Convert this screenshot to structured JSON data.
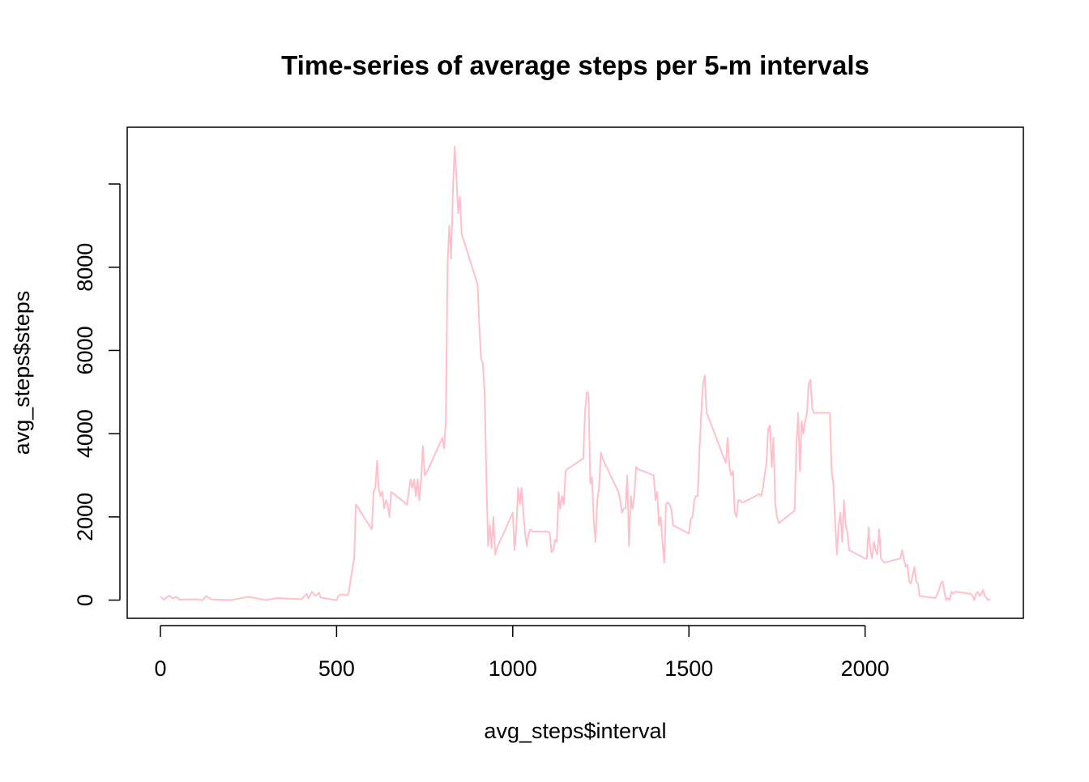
{
  "chart_data": {
    "type": "line",
    "title": "Time-series of average steps per 5-m intervals",
    "x_label": "avg_steps$interval",
    "y_label": "avg_steps$steps",
    "color": "#ffc0cb",
    "x": [
      0,
      10,
      25,
      35,
      45,
      55,
      100,
      120,
      130,
      145,
      200,
      250,
      300,
      330,
      400,
      415,
      420,
      430,
      440,
      450,
      455,
      500,
      505,
      515,
      530,
      535,
      540,
      545,
      550,
      555,
      600,
      605,
      610,
      615,
      620,
      625,
      630,
      635,
      640,
      645,
      650,
      655,
      700,
      705,
      710,
      715,
      720,
      725,
      730,
      735,
      740,
      745,
      750,
      755,
      800,
      805,
      810,
      815,
      820,
      825,
      830,
      835,
      840,
      845,
      850,
      855,
      900,
      905,
      910,
      915,
      920,
      925,
      930,
      935,
      940,
      945,
      950,
      955,
      1000,
      1005,
      1010,
      1015,
      1020,
      1025,
      1030,
      1035,
      1040,
      1045,
      1050,
      1055,
      1100,
      1105,
      1110,
      1115,
      1120,
      1125,
      1130,
      1135,
      1140,
      1145,
      1150,
      1155,
      1200,
      1205,
      1210,
      1215,
      1220,
      1225,
      1230,
      1235,
      1240,
      1245,
      1250,
      1255,
      1300,
      1305,
      1310,
      1315,
      1320,
      1325,
      1330,
      1335,
      1340,
      1345,
      1350,
      1355,
      1400,
      1405,
      1410,
      1415,
      1420,
      1425,
      1430,
      1435,
      1440,
      1445,
      1450,
      1455,
      1500,
      1505,
      1510,
      1515,
      1520,
      1525,
      1530,
      1535,
      1540,
      1545,
      1550,
      1555,
      1600,
      1605,
      1610,
      1615,
      1620,
      1625,
      1630,
      1635,
      1640,
      1645,
      1650,
      1655,
      1700,
      1705,
      1710,
      1715,
      1720,
      1725,
      1730,
      1735,
      1740,
      1745,
      1750,
      1755,
      1800,
      1805,
      1810,
      1815,
      1820,
      1825,
      1830,
      1835,
      1840,
      1845,
      1850,
      1855,
      1900,
      1905,
      1910,
      1915,
      1920,
      1925,
      1930,
      1935,
      1940,
      1945,
      1950,
      1955,
      2000,
      2005,
      2010,
      2015,
      2020,
      2025,
      2030,
      2035,
      2040,
      2045,
      2050,
      2055,
      2100,
      2105,
      2110,
      2115,
      2120,
      2125,
      2130,
      2135,
      2140,
      2145,
      2150,
      2155,
      2200,
      2205,
      2210,
      2215,
      2220,
      2225,
      2230,
      2235,
      2240,
      2245,
      2250,
      2255,
      2300,
      2305,
      2310,
      2315,
      2320,
      2325,
      2330,
      2335,
      2340,
      2345,
      2350,
      2355
    ],
    "values": [
      90,
      10,
      110,
      40,
      80,
      10,
      20,
      0,
      100,
      15,
      0,
      80,
      0,
      50,
      20,
      150,
      40,
      200,
      100,
      180,
      60,
      0,
      100,
      140,
      110,
      200,
      500,
      750,
      1000,
      2300,
      1700,
      2600,
      2700,
      3350,
      2650,
      2500,
      2600,
      2200,
      2400,
      2300,
      2000,
      2600,
      2300,
      2600,
      2900,
      2700,
      2900,
      2500,
      2900,
      2400,
      2900,
      3700,
      3000,
      3050,
      3900,
      3650,
      4300,
      8100,
      9000,
      8200,
      9800,
      10900,
      10200,
      9300,
      9700,
      8800,
      7600,
      6600,
      5800,
      5700,
      5000,
      3000,
      1300,
      1800,
      1250,
      2000,
      1100,
      1250,
      2100,
      1200,
      1700,
      2700,
      2300,
      2700,
      2100,
      1600,
      1300,
      1600,
      1700,
      1650,
      1650,
      1600,
      1150,
      1200,
      1450,
      1400,
      2600,
      2200,
      2500,
      2300,
      3100,
      3150,
      3400,
      4500,
      5000,
      4950,
      2800,
      2950,
      1900,
      1400,
      2400,
      2700,
      3550,
      3400,
      2600,
      2400,
      2100,
      2200,
      2200,
      3000,
      1300,
      2500,
      2200,
      2500,
      3200,
      3150,
      3000,
      2400,
      2600,
      1800,
      2000,
      1400,
      900,
      2300,
      2350,
      2300,
      2200,
      1800,
      1600,
      1950,
      2000,
      2400,
      2500,
      2500,
      3600,
      4500,
      5200,
      5400,
      4500,
      4400,
      3400,
      3300,
      3900,
      3200,
      3000,
      3100,
      2100,
      2000,
      2400,
      2400,
      2350,
      2350,
      2550,
      2500,
      2700,
      3000,
      3300,
      4100,
      4200,
      3200,
      3900,
      2300,
      2000,
      1850,
      2150,
      3700,
      4500,
      3100,
      4300,
      4000,
      4300,
      4500,
      5200,
      5300,
      4600,
      4500,
      4500,
      3100,
      2800,
      1900,
      1100,
      1800,
      2100,
      1400,
      2400,
      1800,
      1600,
      1200,
      1000,
      1000,
      1750,
      1200,
      1000,
      1400,
      1200,
      1100,
      1700,
      1000,
      950,
      900,
      1000,
      1200,
      1000,
      800,
      850,
      450,
      400,
      600,
      800,
      450,
      400,
      100,
      50,
      150,
      250,
      400,
      450,
      200,
      0,
      50,
      0,
      200,
      150,
      200,
      150,
      100,
      0,
      150,
      200,
      100,
      150,
      250,
      100,
      50,
      0,
      30
    ],
    "xlim": [
      -94.2,
      2449.2
    ],
    "ylim": [
      -437,
      11364
    ],
    "xticks": [
      0,
      500,
      1000,
      1500,
      2000
    ],
    "yticks": [
      0,
      2000,
      4000,
      6000,
      8000,
      {
        "value": 10000,
        "label": null
      }
    ]
  }
}
